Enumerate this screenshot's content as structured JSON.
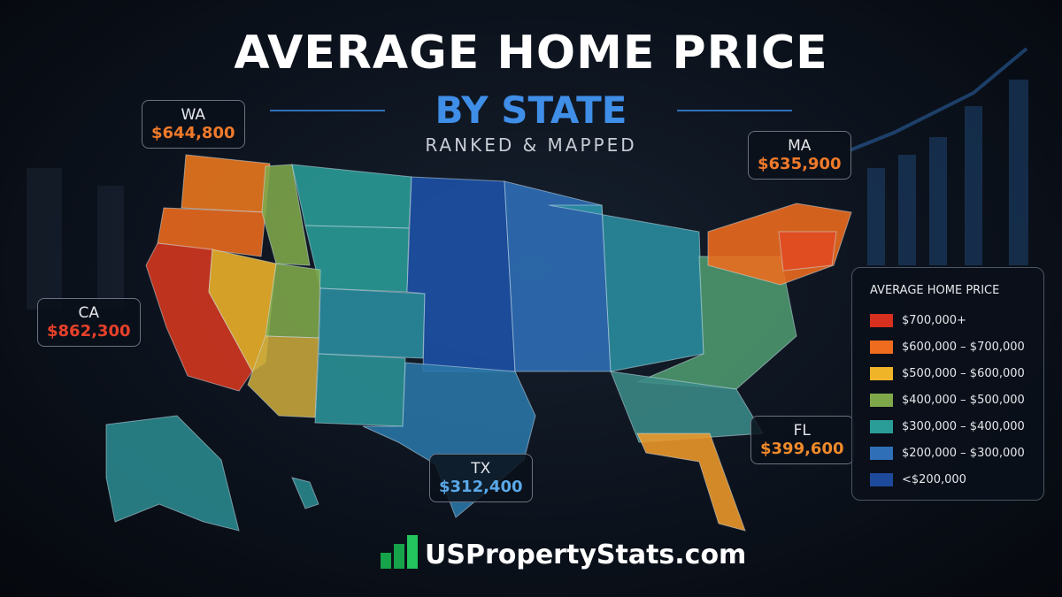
{
  "header": {
    "title": "AVERAGE HOME PRICE",
    "subtitle": "BY STATE",
    "tagline": "RANKED & MAPPED"
  },
  "callouts": [
    {
      "state": "WA",
      "price": "$644,800",
      "color": "#f07a2a"
    },
    {
      "state": "CA",
      "price": "$862,300",
      "color": "#e8402a"
    },
    {
      "state": "MA",
      "price": "$635,900",
      "color": "#f07a2a"
    },
    {
      "state": "FL",
      "price": "$399,600",
      "color": "#f08a2a"
    },
    {
      "state": "TX",
      "price": "$312,400",
      "color": "#5aa8e8"
    }
  ],
  "legend": {
    "title": "AVERAGE HOME PRICE",
    "items": [
      {
        "label": "$700,000+",
        "color": "#d7301f"
      },
      {
        "label": "$600,000 – $700,000",
        "color": "#ef6c1e"
      },
      {
        "label": "$500,000 – $600,000",
        "color": "#f0b429"
      },
      {
        "label": "$400,000 – $500,000",
        "color": "#7fa84a"
      },
      {
        "label": "$300,000 – $400,000",
        "color": "#2a9d99"
      },
      {
        "label": "$200,000 – $300,000",
        "color": "#2f6fb8"
      },
      {
        "label": "<$200,000",
        "color": "#1d4a9a"
      }
    ]
  },
  "footer": {
    "brand": "USPropertyStats.com"
  }
}
